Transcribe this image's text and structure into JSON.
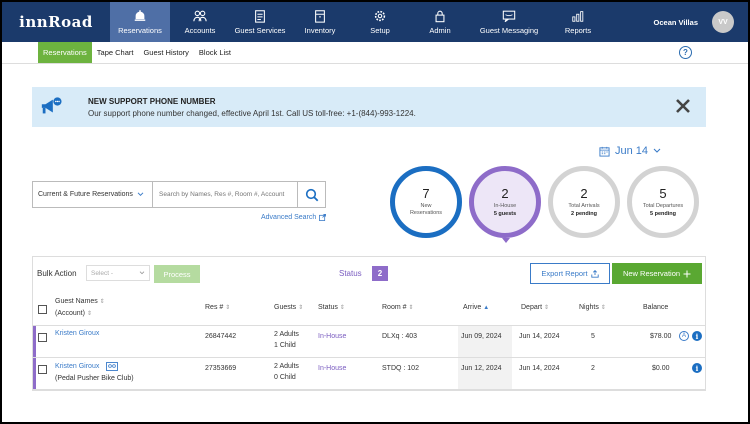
{
  "app": {
    "logo": "innRoad"
  },
  "nav": {
    "items": [
      {
        "label": "Reservations",
        "icon": "bell-icon"
      },
      {
        "label": "Accounts",
        "icon": "users-icon"
      },
      {
        "label": "Guest Services",
        "icon": "clipboard-icon"
      },
      {
        "label": "Inventory",
        "icon": "inventory-icon"
      },
      {
        "label": "Setup",
        "icon": "gear-icon"
      },
      {
        "label": "Admin",
        "icon": "lock-icon"
      },
      {
        "label": "Guest Messaging",
        "icon": "message-icon"
      },
      {
        "label": "Reports",
        "icon": "bar-chart-icon"
      }
    ],
    "property": "Ocean Villas",
    "avatar": "VV"
  },
  "subnav": {
    "items": [
      "Reservations",
      "Tape Chart",
      "Guest History",
      "Block List"
    ],
    "help": "?"
  },
  "banner": {
    "title": "NEW SUPPORT PHONE NUMBER",
    "message": "Our support phone number changed, effective April 1st. Call US toll-free: +1-(844)-993-1224."
  },
  "date_selector": {
    "value": "Jun 14"
  },
  "search": {
    "filter": "Current & Future Reservations",
    "placeholder": "Search by Names, Res #, Room #, Account",
    "advanced": "Advanced Search"
  },
  "stats": [
    {
      "num": "7",
      "label": "New Reservations",
      "sub": ""
    },
    {
      "num": "2",
      "label": "In-House",
      "sub": "5 guests"
    },
    {
      "num": "2",
      "label": "Total Arrivals",
      "sub": "2 pending"
    },
    {
      "num": "5",
      "label": "Total Departures",
      "sub": "5 pending"
    }
  ],
  "toolbar": {
    "bulk_label": "Bulk Action",
    "bulk_select": "Select -",
    "process": "Process",
    "status_label": "Status",
    "status_count": "2",
    "export": "Export Report",
    "new_reservation": "New Reservation"
  },
  "table": {
    "headers": {
      "guest": "Guest Names",
      "account": "(Account)",
      "res": "Res #",
      "guests": "Guests",
      "status": "Status",
      "room": "Room #",
      "arrive": "Arrive",
      "depart": "Depart",
      "nights": "Nights",
      "balance": "Balance"
    },
    "rows": [
      {
        "name": "Kristen Giroux",
        "account": "",
        "res": "26847442",
        "adults": "2 Adults",
        "child": "1 Child",
        "status": "In-House",
        "room": "DLXq : 403",
        "arrive": "Jun 09, 2024",
        "depart": "Jun 14, 2024",
        "nights": "5",
        "balance": "$78.00"
      },
      {
        "name": "Kristen Giroux",
        "account": "(Pedal Pusher Bike Club)",
        "res": "27353669",
        "adults": "2 Adults",
        "child": "0 Child",
        "status": "In-House",
        "room": "STDQ : 102",
        "arrive": "Jun 12, 2024",
        "depart": "Jun 14, 2024",
        "nights": "2",
        "balance": "$0.00"
      }
    ]
  },
  "colors": {
    "nav_bg": "#1b3a6b",
    "accent_green": "#6db33f",
    "link_blue": "#3a7bc8",
    "status_purple": "#8e6cc9"
  }
}
